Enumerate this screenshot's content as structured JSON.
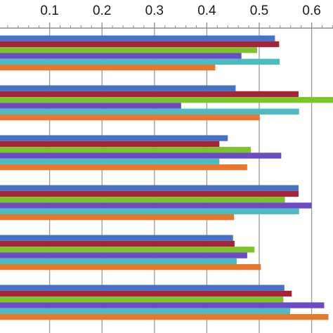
{
  "chart_data": {
    "type": "bar",
    "orientation": "horizontal",
    "title": "",
    "xlabel": "",
    "ylabel": "",
    "xlim": [
      0,
      0.66
    ],
    "xticks": [
      0.1,
      0.2,
      0.3,
      0.4,
      0.5,
      0.6
    ],
    "xtick_labels": [
      "0.1",
      "0.2",
      "0.3",
      "0.4",
      "0.5",
      "0.6"
    ],
    "grid": "vertical",
    "x_axis_position": "top",
    "categories": [
      "",
      "",
      "",
      "",
      "",
      ""
    ],
    "series": [
      {
        "color": "#4472C4",
        "values": [
          0.53,
          0.455,
          0.44,
          0.575,
          0.45,
          0.548
        ]
      },
      {
        "color": "#A5243A",
        "values": [
          0.538,
          0.575,
          0.424,
          0.575,
          0.453,
          0.562
        ]
      },
      {
        "color": "#7CC42A",
        "values": [
          0.496,
          0.65,
          0.484,
          0.549,
          0.491,
          0.546
        ]
      },
      {
        "color": "#6C4BC4",
        "values": [
          0.466,
          0.351,
          0.542,
          0.6,
          0.477,
          0.624
        ]
      },
      {
        "color": "#4BBCC2",
        "values": [
          0.539,
          0.576,
          0.424,
          0.576,
          0.457,
          0.559
        ]
      },
      {
        "color": "#E8772E",
        "values": [
          0.416,
          0.501,
          0.477,
          0.452,
          0.503,
          0.632
        ]
      }
    ]
  }
}
